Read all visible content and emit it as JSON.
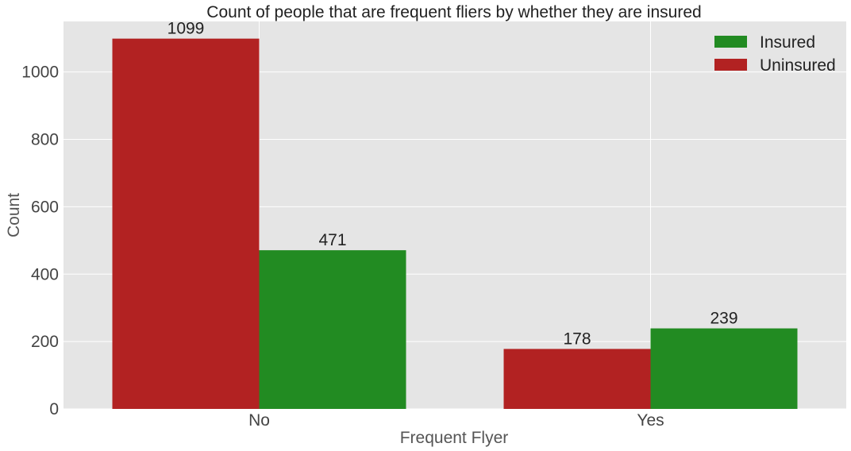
{
  "chart_data": {
    "type": "bar",
    "title": "Count of people that are frequent fliers by whether they are insured",
    "xlabel": "Frequent Flyer",
    "ylabel": "Count",
    "categories": [
      "No",
      "Yes"
    ],
    "series": [
      {
        "name": "Uninsured",
        "values": [
          1099,
          178
        ],
        "color": "#b22222"
      },
      {
        "name": "Insured",
        "values": [
          471,
          239
        ],
        "color": "#228b22"
      }
    ],
    "legend_order": [
      "Insured",
      "Uninsured"
    ],
    "ylim": [
      0,
      1150
    ],
    "yticks": [
      0,
      200,
      400,
      600,
      800,
      1000
    ],
    "grid": true,
    "legend_position": "top-right",
    "background": "#e5e5e5",
    "grid_color": "#ffffff"
  }
}
